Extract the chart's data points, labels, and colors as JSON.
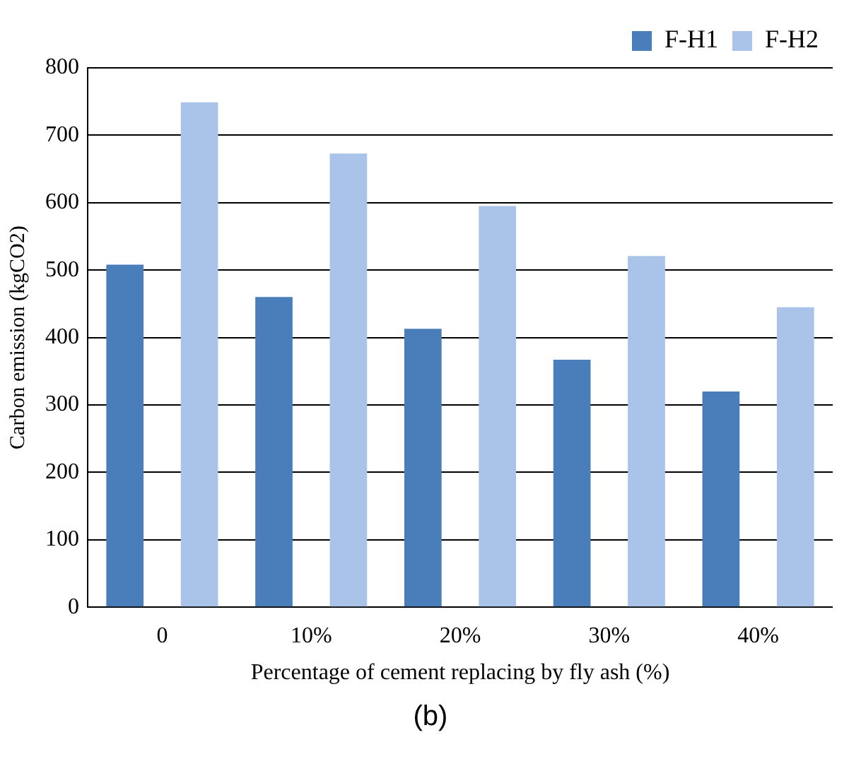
{
  "chart_data": {
    "type": "bar",
    "xlabel": "Percentage of cement replacing by fly ash (%)",
    "ylabel": "Carbon emission (kgCO2)",
    "categories": [
      "0",
      "10%",
      "20%",
      "30%",
      "40%"
    ],
    "series": [
      {
        "name": "F-H1",
        "color": "#4a7ebb",
        "values": [
          508,
          460,
          413,
          367,
          320
        ]
      },
      {
        "name": "F-H2",
        "color": "#a9c4e8",
        "values": [
          749,
          673,
          595,
          521,
          445
        ]
      }
    ],
    "ylim": [
      0,
      800
    ],
    "yticks": [
      0,
      100,
      200,
      300,
      400,
      500,
      600,
      700,
      800
    ],
    "grid": "y",
    "legend": "top right",
    "annotations": [
      "(b)"
    ]
  }
}
